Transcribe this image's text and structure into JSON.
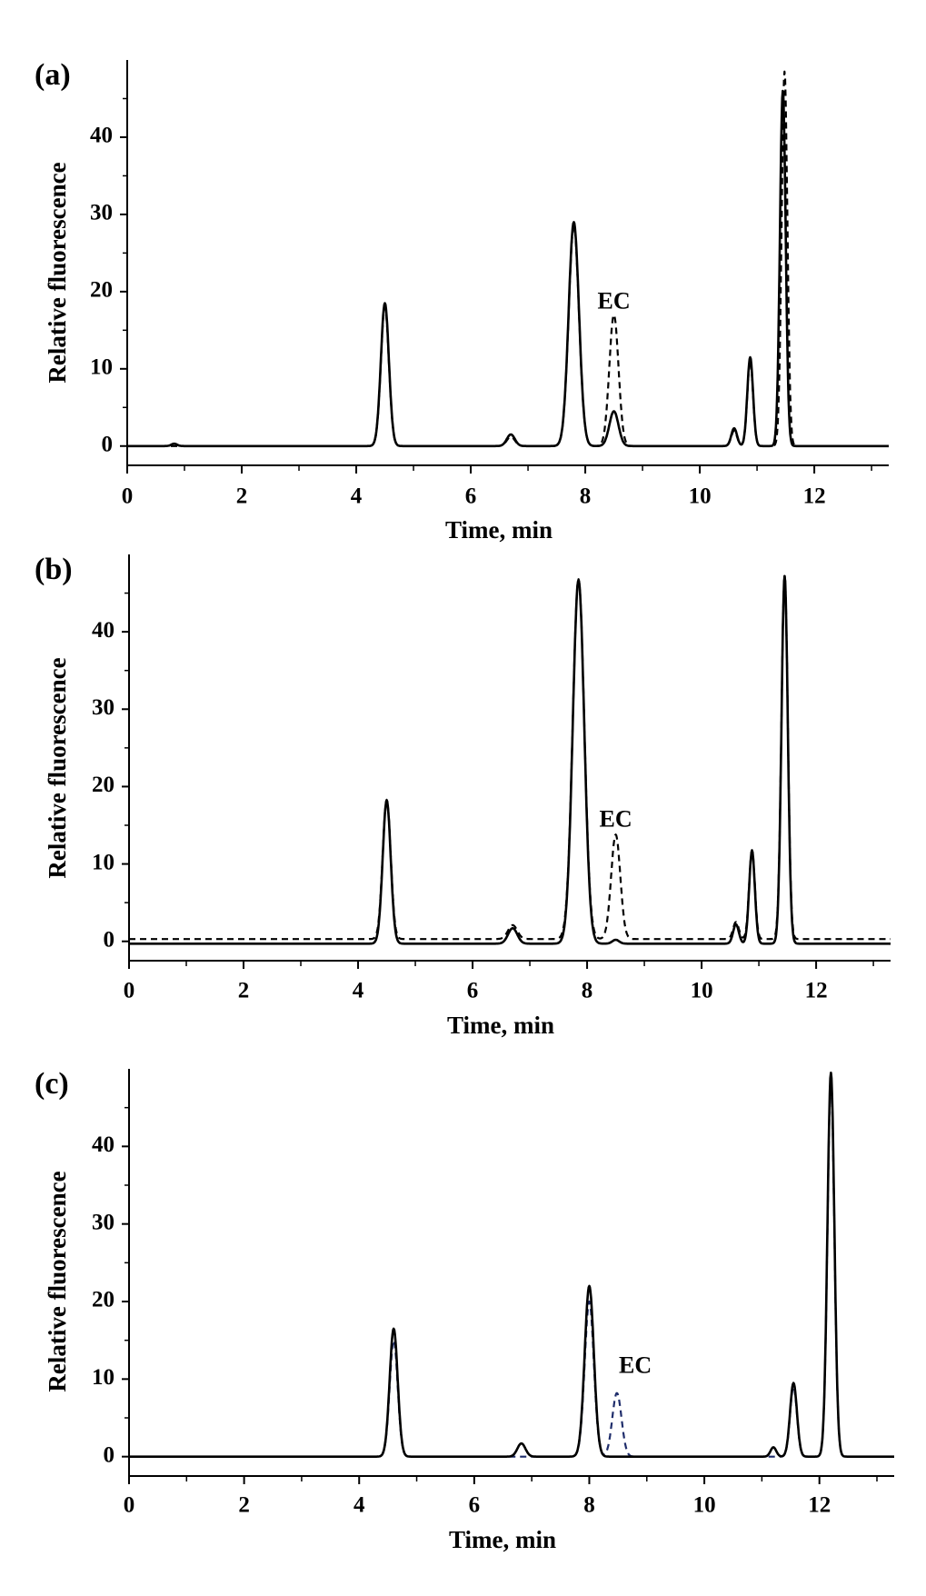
{
  "chart_data": [
    {
      "type": "line",
      "panel_label": "(a)",
      "xlabel": "Time, min",
      "ylabel": "Relative fluorescence",
      "xlim": [
        0,
        13.3
      ],
      "ylim": [
        -2.5,
        50
      ],
      "x_ticks": [
        0,
        2,
        4,
        6,
        8,
        10,
        12
      ],
      "y_ticks": [
        0,
        10,
        20,
        30,
        40
      ],
      "annotations": [
        {
          "text": "EC",
          "x": 8.5,
          "y": 18.5
        }
      ],
      "series": [
        {
          "style": "solid",
          "color": "#000000",
          "baseline": 0,
          "peaks": [
            {
              "x": 0.82,
              "h": 0.3,
              "w": 0.05
            },
            {
              "x": 4.5,
              "h": 18.5,
              "w": 0.07
            },
            {
              "x": 6.7,
              "h": 1.5,
              "w": 0.07
            },
            {
              "x": 7.8,
              "h": 29.0,
              "w": 0.09
            },
            {
              "x": 8.5,
              "h": 4.5,
              "w": 0.08
            },
            {
              "x": 10.6,
              "h": 2.3,
              "w": 0.05
            },
            {
              "x": 10.88,
              "h": 11.5,
              "w": 0.05
            },
            {
              "x": 11.45,
              "h": 46.0,
              "w": 0.05
            }
          ]
        },
        {
          "style": "dashed",
          "color": "#000000",
          "baseline": 0,
          "peaks": [
            {
              "x": 4.5,
              "h": 18.0,
              "w": 0.07
            },
            {
              "x": 6.7,
              "h": 1.2,
              "w": 0.07
            },
            {
              "x": 7.8,
              "h": 28.5,
              "w": 0.09
            },
            {
              "x": 8.5,
              "h": 17.0,
              "w": 0.08
            },
            {
              "x": 10.6,
              "h": 2.0,
              "w": 0.05
            },
            {
              "x": 10.88,
              "h": 11.0,
              "w": 0.05
            },
            {
              "x": 11.48,
              "h": 48.5,
              "w": 0.05
            }
          ]
        }
      ]
    },
    {
      "type": "line",
      "panel_label": "(b)",
      "xlabel": "Time, min",
      "ylabel": "Relative fluorescence",
      "xlim": [
        0,
        13.3
      ],
      "ylim": [
        -2.5,
        50
      ],
      "x_ticks": [
        0,
        2,
        4,
        6,
        8,
        10,
        12
      ],
      "y_ticks": [
        0,
        10,
        20,
        30,
        40
      ],
      "annotations": [
        {
          "text": "EC",
          "x": 8.5,
          "y": 15.5
        }
      ],
      "series": [
        {
          "style": "solid",
          "color": "#000000",
          "baseline": -0.3,
          "peaks": [
            {
              "x": 4.5,
              "h": 18.5,
              "w": 0.07
            },
            {
              "x": 6.7,
              "h": 2.0,
              "w": 0.08
            },
            {
              "x": 7.85,
              "h": 47.0,
              "w": 0.1
            },
            {
              "x": 8.5,
              "h": 0.5,
              "w": 0.06
            },
            {
              "x": 10.6,
              "h": 2.5,
              "w": 0.05
            },
            {
              "x": 10.88,
              "h": 12.0,
              "w": 0.05
            },
            {
              "x": 11.45,
              "h": 47.5,
              "w": 0.055
            }
          ]
        },
        {
          "style": "dashed",
          "color": "#000000",
          "baseline": 0.3,
          "peaks": [
            {
              "x": 4.5,
              "h": 18.0,
              "w": 0.07
            },
            {
              "x": 6.7,
              "h": 1.8,
              "w": 0.08
            },
            {
              "x": 7.85,
              "h": 46.5,
              "w": 0.1
            },
            {
              "x": 8.5,
              "h": 13.5,
              "w": 0.08
            },
            {
              "x": 10.6,
              "h": 2.2,
              "w": 0.05
            },
            {
              "x": 10.88,
              "h": 11.5,
              "w": 0.05
            },
            {
              "x": 11.45,
              "h": 47.0,
              "w": 0.055
            }
          ]
        }
      ]
    },
    {
      "type": "line",
      "panel_label": "(c)",
      "xlabel": "Time, min",
      "ylabel": "Relative fluorescence",
      "xlim": [
        0,
        13.3
      ],
      "ylim": [
        -2.5,
        50
      ],
      "x_ticks": [
        0,
        2,
        4,
        6,
        8,
        10,
        12
      ],
      "y_ticks": [
        0,
        10,
        20,
        30,
        40
      ],
      "annotations": [
        {
          "text": "EC",
          "x": 8.8,
          "y": 11.5
        }
      ],
      "series": [
        {
          "style": "solid",
          "color": "#000000",
          "baseline": 0,
          "peaks": [
            {
              "x": 4.6,
              "h": 16.5,
              "w": 0.07
            },
            {
              "x": 6.82,
              "h": 1.7,
              "w": 0.07
            },
            {
              "x": 8.0,
              "h": 22.0,
              "w": 0.08
            },
            {
              "x": 11.2,
              "h": 1.2,
              "w": 0.05
            },
            {
              "x": 11.55,
              "h": 9.5,
              "w": 0.06
            },
            {
              "x": 12.2,
              "h": 49.5,
              "w": 0.06
            }
          ]
        },
        {
          "style": "dashed",
          "color": "#1f2d6b",
          "baseline": 0,
          "peaks": [
            {
              "x": 4.6,
              "h": 15.0,
              "w": 0.07
            },
            {
              "x": 8.0,
              "h": 20.0,
              "w": 0.08
            },
            {
              "x": 8.48,
              "h": 8.2,
              "w": 0.08
            },
            {
              "x": 11.55,
              "h": 9.0,
              "w": 0.06
            },
            {
              "x": 12.2,
              "h": 48.5,
              "w": 0.06
            }
          ]
        }
      ]
    }
  ]
}
